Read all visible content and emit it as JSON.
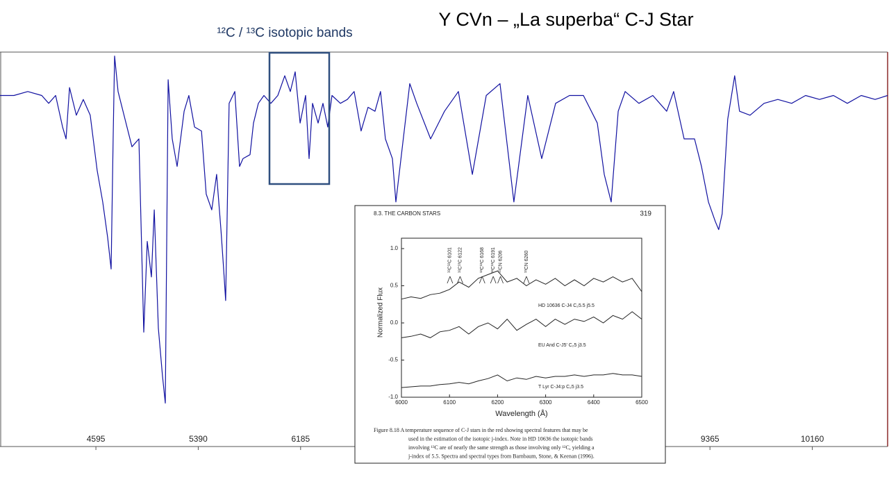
{
  "chart_data": [
    {
      "type": "line",
      "title": "Y CVn – „La superba“  C-J Star",
      "annotation": "¹²C / ¹³C  isotopic bands",
      "color": "#1010a0",
      "xlim": [
        3850,
        10745
      ],
      "ylim": [
        0,
        1
      ],
      "xticks": [
        4595,
        5390,
        6185,
        9365,
        10160
      ],
      "x": [
        3850,
        3958,
        4066,
        4174,
        4228,
        4282,
        4336,
        4363,
        4390,
        4443,
        4497,
        4551,
        4605,
        4648,
        4686,
        4713,
        4729,
        4740,
        4767,
        4821,
        4875,
        4929,
        4967,
        4994,
        5026,
        5048,
        5080,
        5112,
        5134,
        5156,
        5188,
        5226,
        5280,
        5317,
        5361,
        5415,
        5452,
        5495,
        5533,
        5566,
        5587,
        5603,
        5630,
        5674,
        5711,
        5738,
        5792,
        5819,
        5857,
        5900,
        5954,
        6008,
        6062,
        6105,
        6143,
        6181,
        6224,
        6251,
        6278,
        6321,
        6359,
        6396,
        6429,
        6494,
        6548,
        6601,
        6655,
        6709,
        6763,
        6806,
        6844,
        6898,
        6925,
        7033,
        7087,
        7195,
        7303,
        7411,
        7519,
        7627,
        7734,
        7842,
        7950,
        8058,
        8166,
        8274,
        8382,
        8490,
        8544,
        8598,
        8652,
        8706,
        8813,
        8921,
        9029,
        9083,
        9164,
        9245,
        9299,
        9353,
        9407,
        9433,
        9460,
        9503,
        9557,
        9595,
        9676,
        9785,
        9892,
        10000,
        10108,
        10216,
        10324,
        10432,
        10540,
        10648,
        10745
      ],
      "values": [
        0.89,
        0.89,
        0.9,
        0.89,
        0.87,
        0.89,
        0.81,
        0.78,
        0.91,
        0.84,
        0.88,
        0.84,
        0.7,
        0.62,
        0.53,
        0.45,
        0.78,
        0.99,
        0.9,
        0.83,
        0.76,
        0.78,
        0.29,
        0.52,
        0.43,
        0.6,
        0.3,
        0.18,
        0.11,
        0.93,
        0.78,
        0.71,
        0.85,
        0.89,
        0.81,
        0.8,
        0.64,
        0.6,
        0.69,
        0.55,
        0.45,
        0.37,
        0.87,
        0.9,
        0.71,
        0.73,
        0.74,
        0.82,
        0.87,
        0.89,
        0.87,
        0.89,
        0.94,
        0.9,
        0.95,
        0.82,
        0.89,
        0.73,
        0.87,
        0.82,
        0.87,
        0.81,
        0.89,
        0.87,
        0.88,
        0.9,
        0.8,
        0.86,
        0.85,
        0.9,
        0.78,
        0.73,
        0.62,
        0.92,
        0.87,
        0.78,
        0.85,
        0.9,
        0.69,
        0.89,
        0.92,
        0.62,
        0.89,
        0.73,
        0.87,
        0.89,
        0.89,
        0.82,
        0.69,
        0.62,
        0.85,
        0.9,
        0.87,
        0.89,
        0.85,
        0.9,
        0.78,
        0.78,
        0.71,
        0.62,
        0.57,
        0.55,
        0.59,
        0.83,
        0.94,
        0.85,
        0.84,
        0.87,
        0.88,
        0.87,
        0.89,
        0.88,
        0.89,
        0.87,
        0.89,
        0.88,
        0.89
      ]
    },
    {
      "type": "line",
      "header": "8.3. THE CARBON STARS",
      "page_number": "319",
      "xlabel": "Wavelength (Å)",
      "ylabel": "Normalized Flux",
      "xlim": [
        6000,
        6500
      ],
      "ylim": [
        -1,
        1.14
      ],
      "xticks": [
        6000,
        6100,
        6200,
        6300,
        6400,
        6500
      ],
      "yticks": [
        {
          "value": -1,
          "label": "-1.0"
        },
        -0.5,
        {
          "value": 0,
          "label": "0.0"
        },
        0.5,
        {
          "value": 1,
          "label": "1.0"
        }
      ],
      "x": [
        6000,
        6020,
        6040,
        6060,
        6080,
        6100,
        6120,
        6140,
        6160,
        6180,
        6200,
        6220,
        6240,
        6260,
        6280,
        6300,
        6320,
        6340,
        6360,
        6380,
        6400,
        6420,
        6440,
        6460,
        6480,
        6500
      ],
      "series": [
        {
          "name": "HD 10636  C-J4 C₂5.5 j5.5",
          "color": "#222222",
          "values": [
            0.32,
            0.35,
            0.33,
            0.38,
            0.4,
            0.45,
            0.55,
            0.48,
            0.6,
            0.65,
            0.7,
            0.55,
            0.6,
            0.5,
            0.58,
            0.52,
            0.6,
            0.5,
            0.58,
            0.5,
            0.6,
            0.55,
            0.62,
            0.55,
            0.6,
            0.42
          ]
        },
        {
          "name": "EU And  C-J5' C₂5 j3.5",
          "color": "#222222",
          "values": [
            -0.2,
            -0.18,
            -0.15,
            -0.2,
            -0.12,
            -0.1,
            -0.05,
            -0.15,
            -0.05,
            0.0,
            -0.08,
            0.05,
            -0.1,
            -0.02,
            0.05,
            -0.05,
            0.05,
            -0.02,
            0.05,
            0.02,
            0.08,
            0.0,
            0.1,
            0.05,
            0.15,
            0.05
          ]
        },
        {
          "name": "T Lyr  C-J4:p C₂5 j3.5",
          "color": "#222222",
          "values": [
            -0.87,
            -0.86,
            -0.85,
            -0.85,
            -0.83,
            -0.82,
            -0.8,
            -0.82,
            -0.78,
            -0.75,
            -0.7,
            -0.78,
            -0.74,
            -0.76,
            -0.72,
            -0.74,
            -0.72,
            -0.72,
            -0.7,
            -0.72,
            -0.7,
            -0.7,
            -0.68,
            -0.7,
            -0.7,
            -0.72
          ]
        }
      ],
      "annotations": [
        {
          "text": "¹²C¹²C 6101",
          "x": 6101
        },
        {
          "text": "¹²C¹³C 6122",
          "x": 6122
        },
        {
          "text": "¹³C¹³C 6168",
          "x": 6168
        },
        {
          "text": "¹²C¹³C 6191",
          "x": 6191
        },
        {
          "text": "¹²CN 6206",
          "x": 6206
        },
        {
          "text": "¹³CN 6260",
          "x": 6260
        }
      ],
      "caption": [
        "Figure 8.18  A temperature sequence of C-J stars in the red showing spectral features that may be",
        "used in the estimation of the isotopic j-index.  Note in HD 10636 the isotopic bands",
        "involving ¹³C are of nearly the same strength as those involving only ¹²C, yielding a",
        "j-index of 5.5. Spectra and spectral types from Barnbaum, Stone, & Keenan (1996)."
      ]
    }
  ]
}
